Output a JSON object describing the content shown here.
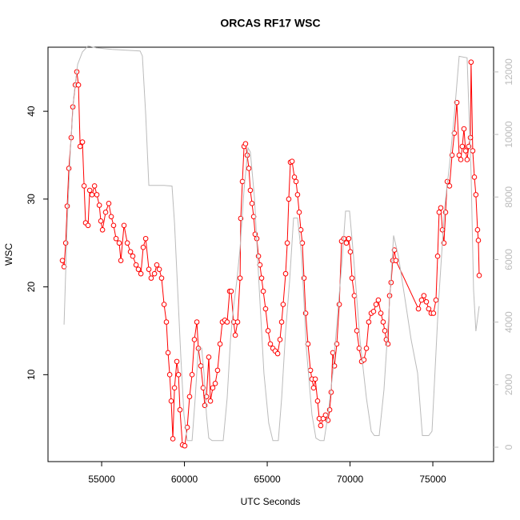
{
  "chart_data": {
    "type": "line",
    "title": "ORCAS RF17 WSC",
    "x_label": "UTC Seconds",
    "y_label": "WSC",
    "xlim": [
      51760,
      78670
    ],
    "xticks": [
      55000,
      60000,
      65000,
      70000,
      75000
    ],
    "ylim": [
      0.1,
      47.3
    ],
    "yticks": [
      10,
      20,
      30,
      40
    ],
    "y2lim": [
      -460,
      12790
    ],
    "y2ticks": [
      0,
      2000,
      4000,
      6000,
      8000,
      10000,
      12000
    ],
    "y2_color": "#bbbbbb",
    "series": [
      {
        "color": "#ff0000",
        "markers": true,
        "x": [
          52630,
          52730,
          52830,
          52920,
          53020,
          53160,
          53260,
          53410,
          53500,
          53600,
          53700,
          53840,
          53940,
          54030,
          54180,
          54280,
          54420,
          54570,
          54710,
          54860,
          54950,
          55050,
          55240,
          55430,
          55580,
          55720,
          55870,
          56060,
          56160,
          56350,
          56550,
          56740,
          56880,
          57080,
          57220,
          57370,
          57510,
          57660,
          57850,
          57990,
          58190,
          58330,
          58480,
          58620,
          58770,
          58910,
          59010,
          59110,
          59200,
          59300,
          59400,
          59540,
          59640,
          59730,
          59880,
          60020,
          60170,
          60310,
          60460,
          60600,
          60750,
          60840,
          60990,
          61130,
          61230,
          61330,
          61470,
          61570,
          61710,
          61860,
          62000,
          62150,
          62290,
          62440,
          62580,
          62730,
          62820,
          62970,
          63070,
          63210,
          63360,
          63400,
          63500,
          63600,
          63690,
          63790,
          63890,
          63980,
          64080,
          64180,
          64270,
          64370,
          64470,
          64560,
          64660,
          64760,
          64900,
          65050,
          65190,
          65340,
          65480,
          65630,
          65770,
          65870,
          65960,
          66110,
          66210,
          66300,
          66400,
          66500,
          66640,
          66740,
          66830,
          66930,
          67030,
          67120,
          67220,
          67320,
          67460,
          67610,
          67700,
          67800,
          67900,
          68040,
          68140,
          68230,
          68380,
          68520,
          68670,
          68770,
          68860,
          68960,
          69060,
          69200,
          69350,
          69490,
          69630,
          69780,
          69920,
          70020,
          70120,
          70260,
          70410,
          70550,
          70700,
          70840,
          70990,
          71130,
          71280,
          71420,
          71570,
          71710,
          71860,
          72000,
          72100,
          72190,
          72290,
          72390,
          72480,
          72580,
          72680,
          72770,
          74130,
          74320,
          74460,
          74610,
          74750,
          74900,
          75040,
          75190,
          75290,
          75380,
          75480,
          75580,
          75670,
          75770,
          75870,
          76010,
          76160,
          76300,
          76450,
          76590,
          76690,
          76780,
          76880,
          76980,
          77070,
          77170,
          77270,
          77310,
          77410,
          77510,
          77600,
          77700,
          77750,
          77800
        ],
        "values": [
          23,
          22.3,
          25,
          29.2,
          33.5,
          37,
          40.5,
          43,
          44.5,
          43,
          36,
          36.5,
          31.5,
          27.3,
          27,
          31,
          30.5,
          31.5,
          30.5,
          29.3,
          27.5,
          26.5,
          28.5,
          29.5,
          28,
          27,
          25.5,
          25,
          23,
          27,
          25,
          24,
          23.5,
          22.5,
          22,
          21.5,
          24.5,
          25.5,
          22,
          21,
          21.5,
          22.5,
          22,
          21,
          18,
          16,
          12.5,
          10,
          7,
          2.7,
          8.5,
          11.5,
          10,
          6,
          2,
          1.9,
          4,
          7.5,
          10,
          14,
          16,
          13,
          11,
          8.5,
          6.5,
          7.5,
          12,
          7,
          8.5,
          9,
          10.5,
          13.5,
          16,
          16.2,
          16,
          19.5,
          19.5,
          16,
          14.5,
          16,
          21,
          27.8,
          32,
          36,
          36.3,
          35,
          33.5,
          31,
          29.5,
          28,
          26,
          25.5,
          23.5,
          22.5,
          21,
          19.5,
          17.5,
          15,
          13.5,
          13,
          12.7,
          12.4,
          14,
          16,
          18,
          21.5,
          25,
          30,
          34.2,
          34.3,
          32.5,
          32,
          30.5,
          28.5,
          26.5,
          25,
          21,
          17,
          13.5,
          10.5,
          9.5,
          8.5,
          9.5,
          7,
          5,
          4.2,
          5,
          5.4,
          4.8,
          6,
          8,
          12.5,
          11,
          13.5,
          18,
          25.2,
          25.5,
          25,
          25.5,
          24,
          21,
          19,
          15,
          13,
          11.5,
          11.7,
          13,
          16,
          17,
          17.2,
          18,
          18.5,
          17,
          16,
          15,
          14,
          13.5,
          19,
          20.5,
          23,
          24.2,
          23,
          17.5,
          18.5,
          19,
          18.3,
          17.5,
          17,
          17,
          18.5,
          23.5,
          28.5,
          29,
          26.5,
          25,
          28.5,
          32,
          31.5,
          35,
          37.5,
          41,
          35,
          34.5,
          36,
          38,
          35.5,
          34.5,
          36,
          37,
          45.6,
          35.5,
          32.5,
          30.5,
          26.5,
          25.3,
          21.3
        ]
      },
      {
        "color": "#bbbbbb",
        "axis": "y2",
        "x": [
          52730,
          52920,
          53120,
          53310,
          53550,
          53840,
          54180,
          54660,
          55630,
          56590,
          57320,
          57460,
          57660,
          57850,
          58040,
          58770,
          59250,
          59400,
          59590,
          59780,
          59970,
          60170,
          60460,
          60650,
          60840,
          61040,
          61180,
          61330,
          61470,
          61670,
          62340,
          62580,
          62780,
          62970,
          63160,
          63360,
          63600,
          63840,
          63980,
          64230,
          64520,
          64800,
          65090,
          65340,
          65670,
          65870,
          66110,
          66350,
          66590,
          66830,
          67080,
          67360,
          67700,
          67940,
          68190,
          68430,
          68670,
          68960,
          69250,
          69540,
          69730,
          69970,
          70210,
          70600,
          70990,
          71280,
          71470,
          71760,
          72050,
          72340,
          72630,
          72920,
          73310,
          73690,
          74080,
          74370,
          74750,
          74950,
          75330,
          75720,
          76010,
          76300,
          76590,
          77070,
          77310,
          77460,
          77600,
          77800
        ],
        "values": [
          3920,
          7170,
          9570,
          11170,
          12240,
          12640,
          12830,
          12770,
          12720,
          12690,
          12670,
          12510,
          10640,
          8370,
          8370,
          8370,
          8350,
          7170,
          5040,
          2910,
          1040,
          210,
          210,
          1570,
          3170,
          3170,
          2370,
          1040,
          290,
          210,
          210,
          1570,
          3440,
          4510,
          5310,
          6370,
          8240,
          9570,
          9440,
          7970,
          5040,
          2370,
          770,
          210,
          210,
          1570,
          3710,
          5310,
          7330,
          7330,
          6110,
          3170,
          1040,
          290,
          210,
          210,
          1040,
          2370,
          4240,
          6110,
          7550,
          7550,
          6110,
          3440,
          1570,
          510,
          370,
          370,
          1840,
          4240,
          6770,
          6110,
          4770,
          3440,
          2370,
          370,
          370,
          510,
          4510,
          7700,
          9040,
          10640,
          12500,
          12450,
          8770,
          5040,
          3710,
          4510
        ]
      }
    ]
  }
}
